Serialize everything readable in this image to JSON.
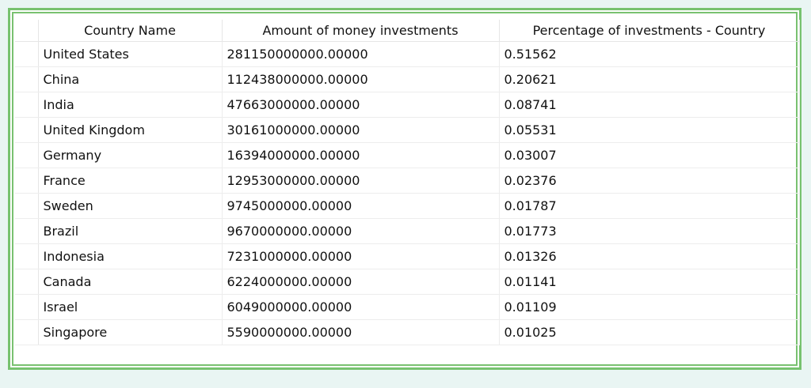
{
  "table": {
    "columns": [
      "Country Name",
      "Amount of money investments",
      "Percentage of investments - Country"
    ],
    "rows": [
      [
        "United States",
        "281150000000.00000",
        "0.51562"
      ],
      [
        "China",
        "112438000000.00000",
        "0.20621"
      ],
      [
        "India",
        "47663000000.00000",
        "0.08741"
      ],
      [
        "United Kingdom",
        "30161000000.00000",
        "0.05531"
      ],
      [
        "Germany",
        "16394000000.00000",
        "0.03007"
      ],
      [
        "France",
        "12953000000.00000",
        "0.02376"
      ],
      [
        "Sweden",
        "9745000000.00000",
        "0.01787"
      ],
      [
        "Brazil",
        "9670000000.00000",
        "0.01773"
      ],
      [
        "Indonesia",
        "7231000000.00000",
        "0.01326"
      ],
      [
        "Canada",
        "6224000000.00000",
        "0.01141"
      ],
      [
        "Israel",
        "6049000000.00000",
        "0.01109"
      ],
      [
        "Singapore",
        "5590000000.00000",
        "0.01025"
      ]
    ]
  },
  "colors": {
    "frame_border": "#77c26f",
    "background": "#e9f5f3",
    "grid_lines": "#ededed"
  }
}
